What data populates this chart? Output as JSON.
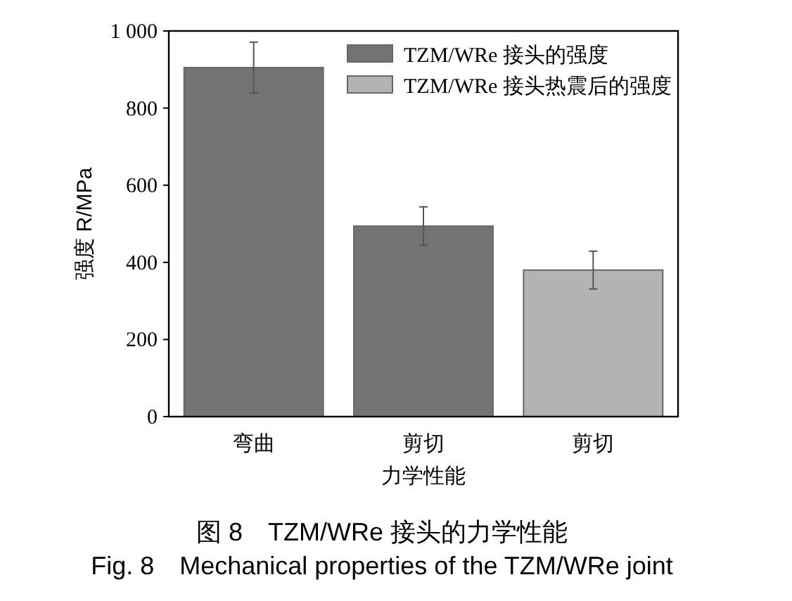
{
  "chart_data": {
    "type": "bar",
    "xlabel": "力学性能",
    "ylabel": "强度 R/MPa",
    "categories": [
      "弯曲",
      "剪切",
      "剪切"
    ],
    "series": [
      {
        "name": "TZM/WRe 接头的强度",
        "color": "#737373",
        "values": [
          905,
          494,
          null
        ],
        "errors": [
          66,
          50,
          null
        ]
      },
      {
        "name": "TZM/WRe 接头热震后的强度",
        "color": "#b3b3b3",
        "values": [
          null,
          null,
          380
        ],
        "errors": [
          null,
          null,
          49
        ]
      }
    ],
    "ylim": [
      0,
      1000
    ],
    "yticks": [
      0,
      200,
      400,
      600,
      800,
      {
        "value": 1000,
        "label": "1 000"
      }
    ],
    "legend": "top right",
    "grid": false,
    "annotations": [
      "图 8　TZM/WRe 接头的力学性能",
      "Fig. 8　Mechanical properties of the TZM/WRe joint"
    ]
  }
}
